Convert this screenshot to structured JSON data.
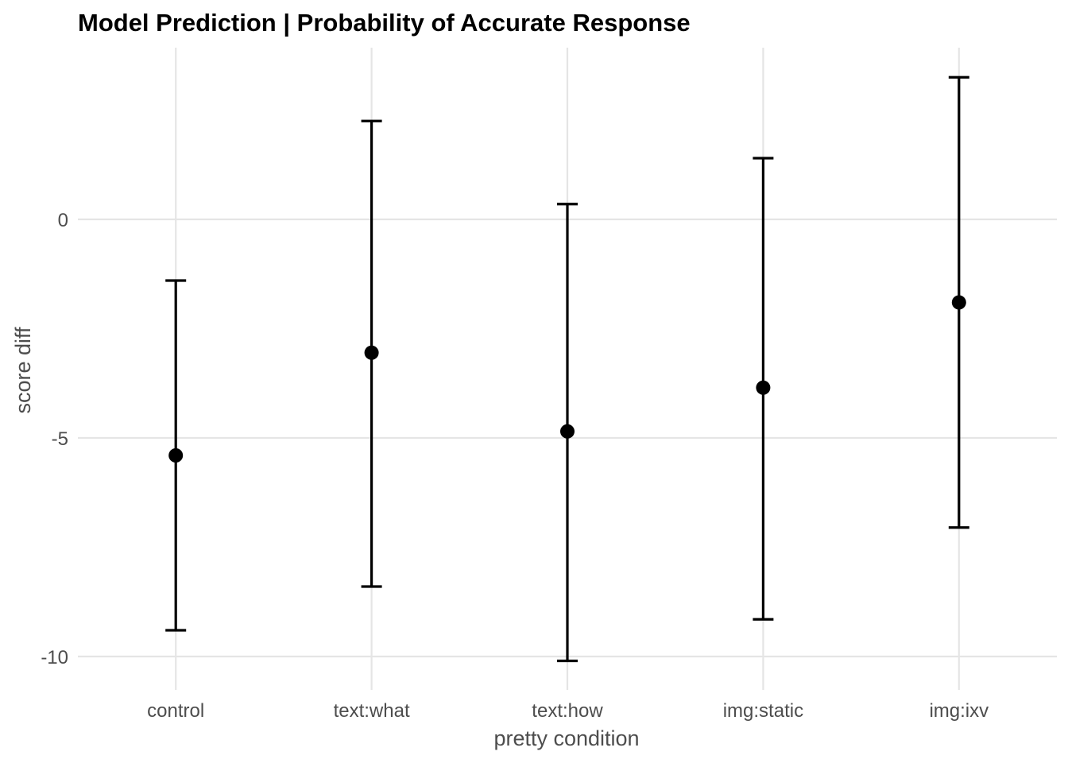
{
  "chart_data": {
    "type": "scatter",
    "subtype": "pointrange-errorbar",
    "title": "Model Prediction | Probability of Accurate Response",
    "xlabel": "pretty condition",
    "ylabel": "score diff",
    "categories": [
      "control",
      "text:what",
      "text:how",
      "img:static",
      "img:ixv"
    ],
    "estimate": [
      -5.4,
      -3.05,
      -4.85,
      -3.85,
      -1.9
    ],
    "lower": [
      -9.4,
      -8.4,
      -10.1,
      -9.15,
      -7.05
    ],
    "upper": [
      -1.4,
      2.25,
      0.35,
      1.4,
      3.25
    ],
    "yticks": [
      0,
      -5,
      -10
    ],
    "ytick_labels": [
      "0",
      "-5",
      "-10"
    ],
    "ylim": [
      -10.8,
      3.9
    ],
    "grid": true,
    "legend": "none",
    "colors": {
      "marks": "#000000",
      "grid": "#e5e5e5",
      "axis_text": "#4d4d4d",
      "title": "#000000"
    }
  }
}
